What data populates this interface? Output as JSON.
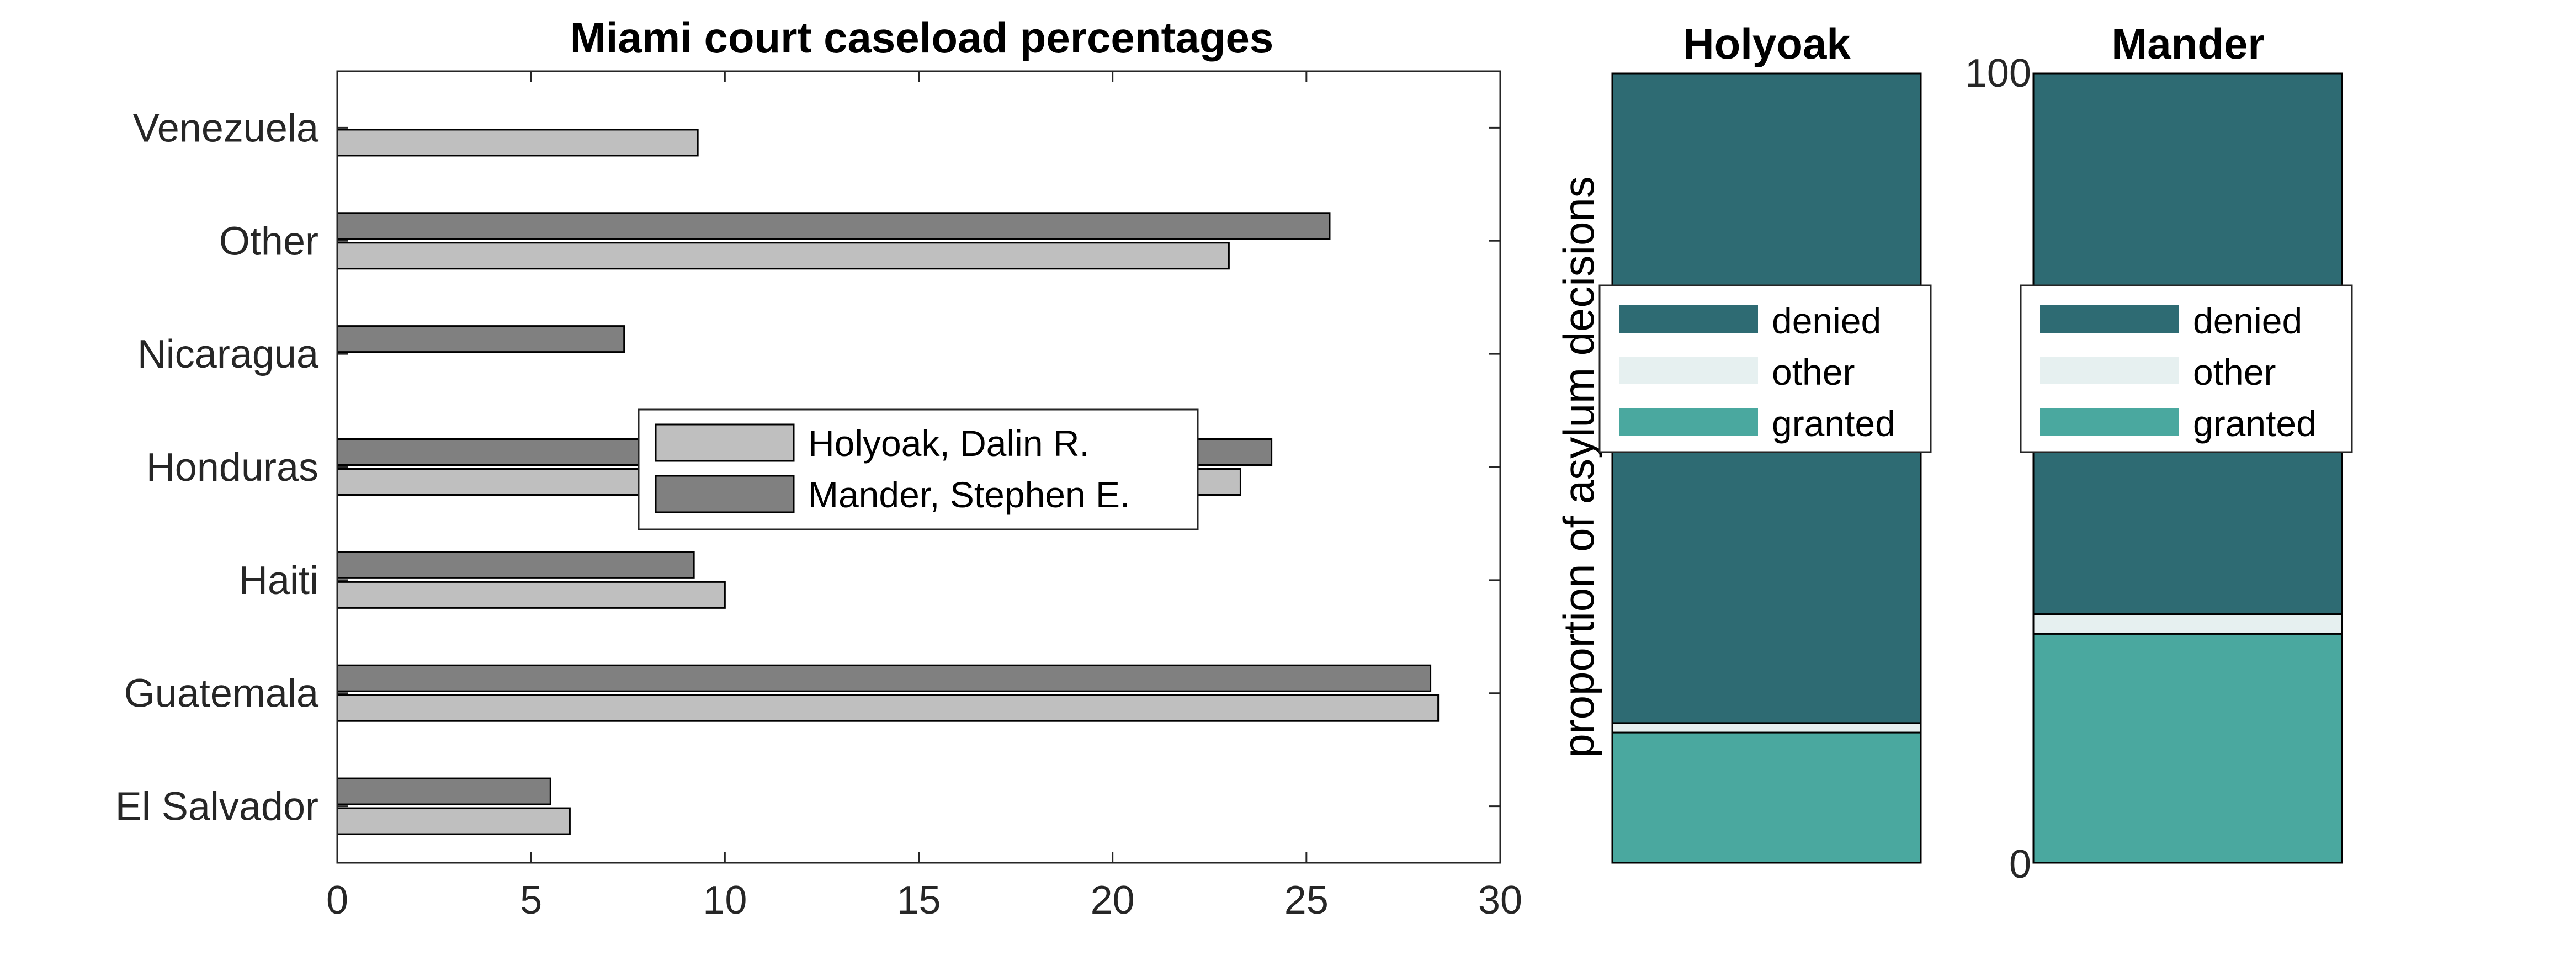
{
  "chart_data": [
    {
      "type": "bar",
      "orientation": "horizontal",
      "title": "Miami court caseload percentages",
      "xlabel": "",
      "ylabel": "",
      "xlim": [
        0,
        30
      ],
      "xticks": [
        "0",
        "5",
        "10",
        "15",
        "20",
        "25",
        "30"
      ],
      "categories": [
        "Venezuela",
        "Other",
        "Nicaragua",
        "Honduras",
        "Haiti",
        "Guatemala",
        "El Salvador"
      ],
      "series": [
        {
          "name": "Holyoak, Dalin R.",
          "color": "#bfbfbf",
          "values": [
            9.3,
            23.0,
            0,
            23.3,
            10.0,
            28.4,
            6.0
          ]
        },
        {
          "name": "Mander, Stephen E.",
          "color": "#808080",
          "values": [
            0,
            25.6,
            7.4,
            24.1,
            9.2,
            28.2,
            5.5
          ]
        }
      ],
      "legend_position": "center"
    },
    {
      "type": "bar",
      "stacked": true,
      "ylabel": "proportion of asylum decisions",
      "ylim": [
        0,
        100
      ],
      "yticks": [
        "0",
        "100"
      ],
      "panels": [
        {
          "title": "Holyoak",
          "granted": 16.5,
          "other": 1.2,
          "denied": 82.3
        },
        {
          "title": "Mander",
          "granted": 29.0,
          "other": 2.5,
          "denied": 68.5
        }
      ],
      "legend": [
        "denied",
        "other",
        "granted"
      ],
      "colors": {
        "denied": "#2e6b73",
        "other": "#e6f0f0",
        "granted": "#4aa89f"
      }
    }
  ]
}
